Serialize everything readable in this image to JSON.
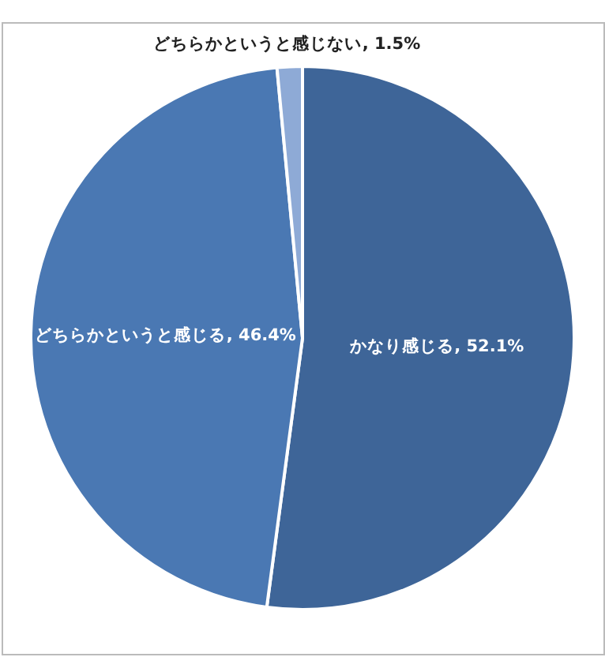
{
  "chart_data": {
    "type": "pie",
    "categories": [
      "かなり感じる",
      "どちらかというと感じる",
      "どちらかというと感じない"
    ],
    "values": [
      52.1,
      46.4,
      1.5
    ],
    "value_labels": [
      ", 52.1%",
      ", 46.4%",
      ", 1.5%"
    ],
    "colors": [
      "#3e6598",
      "#4a78b3",
      "#8eaad6"
    ]
  }
}
